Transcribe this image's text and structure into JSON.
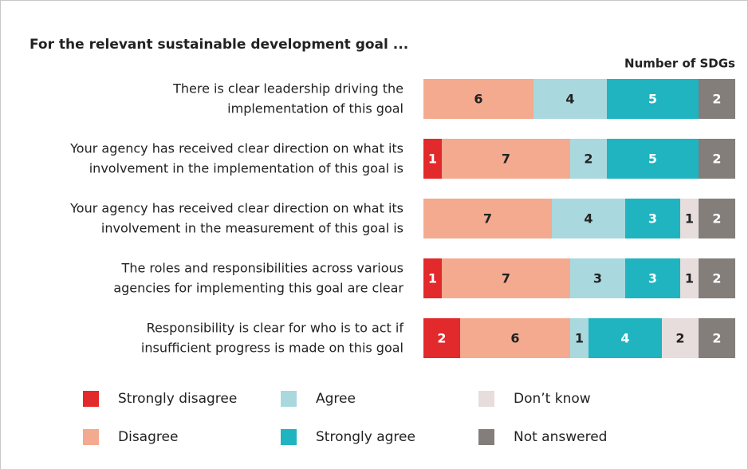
{
  "chart_data": {
    "type": "stacked-bar-horizontal",
    "title": "For the relevant sustainable development goal ...",
    "x_label": "Number of SDGs",
    "categories": [
      [
        "There is clear leadership driving the",
        "implementation of this goal"
      ],
      [
        "Your agency has received clear direction on what its",
        "involvement in the implementation of this goal is"
      ],
      [
        "Your agency has received clear direction on what its",
        "involvement in the measurement of this goal is"
      ],
      [
        "The roles and responsibilities across various",
        "agencies for implementing this goal are clear"
      ],
      [
        "Responsibility is clear for who is to act if",
        "insufficient progress is made on this goal"
      ]
    ],
    "series": [
      {
        "name": "Strongly disagree",
        "color": "#e2292b",
        "values": [
          0,
          1,
          0,
          1,
          2
        ]
      },
      {
        "name": "Disagree",
        "color": "#f3aa8f",
        "values": [
          6,
          7,
          7,
          7,
          6
        ]
      },
      {
        "name": "Agree",
        "color": "#a9d8df",
        "values": [
          4,
          2,
          4,
          3,
          1
        ]
      },
      {
        "name": "Strongly agree",
        "color": "#20b3c0",
        "values": [
          5,
          5,
          3,
          3,
          4
        ]
      },
      {
        "name": "Don’t know",
        "color": "#e7dddc",
        "values": [
          0,
          0,
          1,
          1,
          2
        ]
      },
      {
        "name": "Not answered",
        "color": "#837e79",
        "values": [
          2,
          2,
          2,
          2,
          2
        ]
      }
    ]
  }
}
